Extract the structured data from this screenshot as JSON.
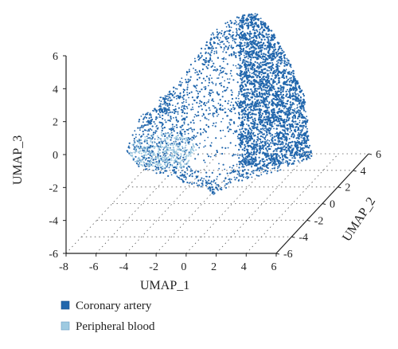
{
  "chart_data": {
    "type": "scatter",
    "projection": "3d",
    "xlabel": "UMAP_1",
    "ylabel": "UMAP_2",
    "zlabel": "UMAP_3",
    "xlim": [
      -8,
      6
    ],
    "ylim": [
      -6,
      6
    ],
    "zlim": [
      -6,
      6
    ],
    "x_ticks": [
      "-8",
      "-6",
      "-4",
      "-2",
      "0",
      "2",
      "4",
      "6"
    ],
    "y_ticks": [
      "-6",
      "-4",
      "-2",
      "0",
      "2",
      "4",
      "6"
    ],
    "z_ticks": [
      "-6",
      "-4",
      "-2",
      "0",
      "2",
      "4",
      "6"
    ],
    "grid": true,
    "legend_position": "bottom-left",
    "series": [
      {
        "name": "Coronary artery",
        "color": "#2166ac"
      },
      {
        "name": "Peripheral blood",
        "color": "#9ecae1"
      }
    ]
  }
}
